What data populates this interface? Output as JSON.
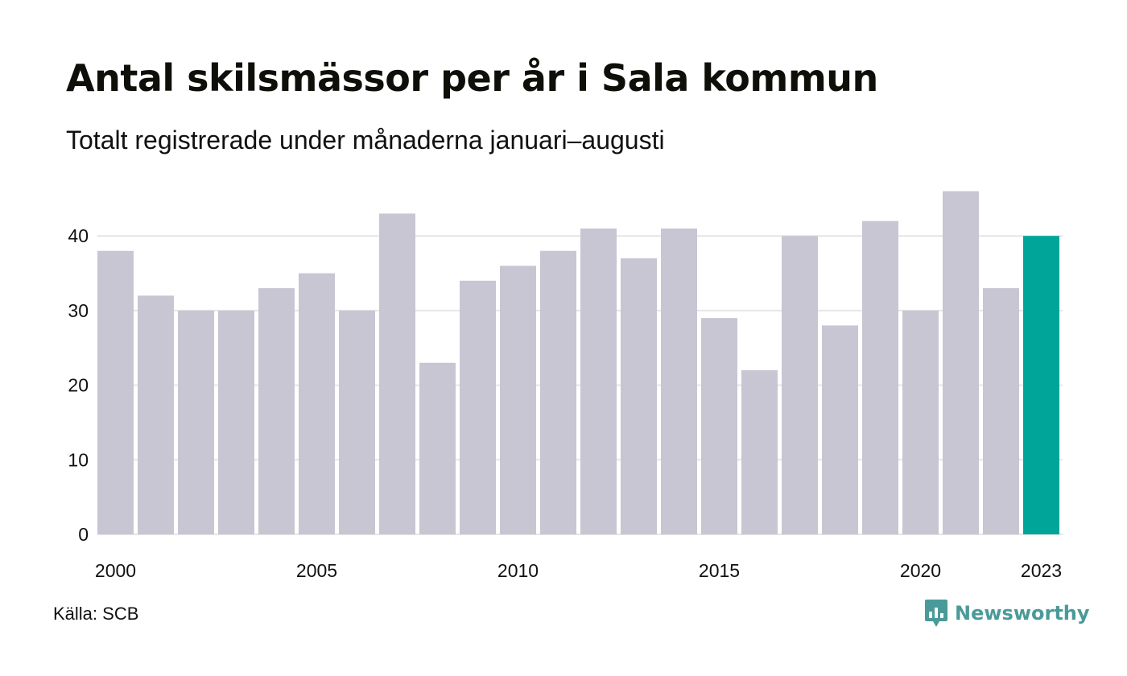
{
  "header": {
    "title": "Antal skilsmässor per år i Sala kommun",
    "subtitle": "Totalt registrerade under månaderna januari–augusti"
  },
  "footer": {
    "source": "Källa: SCB",
    "brand": "Newsworthy",
    "brand_icon": "newsworthy-logo-icon"
  },
  "colors": {
    "bar": "#c8c6d3",
    "highlight": "#00a59a",
    "grid": "#e6e6e6",
    "brand": "#4a9a99"
  },
  "chart_data": {
    "type": "bar",
    "title": "Antal skilsmässor per år i Sala kommun",
    "subtitle": "Totalt registrerade under månaderna januari–augusti",
    "xlabel": "",
    "ylabel": "",
    "categories": [
      "2000",
      "2001",
      "2002",
      "2003",
      "2004",
      "2005",
      "2006",
      "2007",
      "2008",
      "2009",
      "2010",
      "2011",
      "2012",
      "2013",
      "2014",
      "2015",
      "2016",
      "2017",
      "2018",
      "2019",
      "2020",
      "2021",
      "2022",
      "2023"
    ],
    "values": [
      38,
      32,
      30,
      30,
      33,
      35,
      30,
      43,
      23,
      34,
      36,
      38,
      41,
      37,
      41,
      29,
      22,
      40,
      28,
      42,
      30,
      46,
      33,
      40
    ],
    "x_tick_labels": [
      "2000",
      "2005",
      "2010",
      "2015",
      "2020",
      "2023"
    ],
    "y_ticks": [
      0,
      10,
      20,
      30,
      40
    ],
    "ylim": [
      0,
      46
    ],
    "highlight_category": "2023",
    "grid": true,
    "legend": "none"
  }
}
